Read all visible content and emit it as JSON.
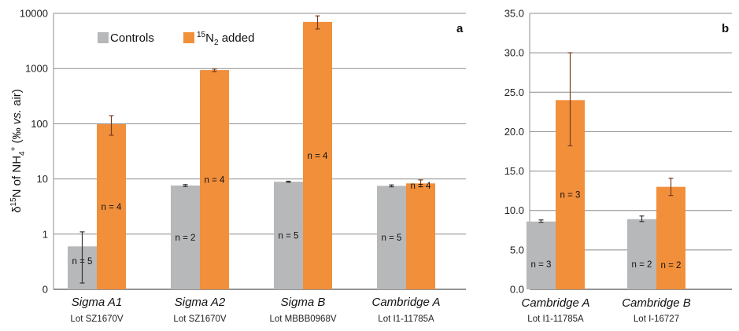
{
  "y_axis_label": {
    "delta": "δ",
    "sup15": "15",
    "n_of": "N of NH",
    "sub4": "4",
    "plus": "+",
    "open": " (‰ ",
    "vs": "vs.",
    "air": " air)"
  },
  "legend": {
    "controls": "Controls",
    "added_sup": "15",
    "added_n": "N",
    "added_sub": "2",
    "added_rest": " added"
  },
  "colors": {
    "controls": "#b7b8b9",
    "added": "#f28f3b",
    "error": "#7a3b1c",
    "grid": "#8c8c8c"
  },
  "chart_data": [
    {
      "panel": "a",
      "type": "bar",
      "scale": "log",
      "ylim": [
        0.1,
        10000
      ],
      "yticks": [
        0.1,
        1,
        10,
        100,
        1000,
        10000
      ],
      "ytick_labels": [
        "0",
        "1",
        "10",
        "100",
        "1000",
        "10000"
      ],
      "grid": true,
      "legend_position": "top-left",
      "categories": [
        {
          "name": "Sigma A1",
          "lot": "Lot SZ1670V"
        },
        {
          "name": "Sigma A2",
          "lot": "Lot SZ1670V"
        },
        {
          "name": "Sigma B",
          "lot": "Lot MBBB0968V"
        },
        {
          "name": "Cambridge A",
          "lot": "Lot I1-11785A"
        }
      ],
      "series": [
        {
          "name": "Controls",
          "key": "controls",
          "values": [
            0.6,
            7.6,
            8.9,
            7.5
          ],
          "err_low": [
            0.13,
            7.3,
            8.7,
            7.2
          ],
          "err_high": [
            1.1,
            7.9,
            9.1,
            7.8
          ],
          "n_labels": [
            "n = 5",
            "n = 2",
            "n = 5",
            "n = 5"
          ]
        },
        {
          "name": "15N2 added",
          "key": "added",
          "values": [
            98,
            940,
            7000,
            8.3
          ],
          "err_low": [
            62,
            880,
            5200,
            7.2
          ],
          "err_high": [
            140,
            980,
            9000,
            9.6
          ],
          "n_labels": [
            "n = 4",
            "n = 4",
            "n = 4",
            "n = 4"
          ]
        }
      ]
    },
    {
      "panel": "b",
      "type": "bar",
      "scale": "linear",
      "ylim": [
        0,
        35
      ],
      "yticks": [
        0,
        5,
        10,
        15,
        20,
        25,
        30,
        35
      ],
      "ytick_labels": [
        "0.0",
        "5.0",
        "10.0",
        "15.0",
        "20.0",
        "25.0",
        "30.0",
        "35.0"
      ],
      "grid": true,
      "categories": [
        {
          "name": "Cambridge A",
          "lot": "Lot I1-11785A"
        },
        {
          "name": "Cambridge B",
          "lot": "Lot I-16727"
        }
      ],
      "series": [
        {
          "name": "Controls",
          "key": "controls",
          "values": [
            8.6,
            8.9
          ],
          "err_low": [
            8.5,
            8.6
          ],
          "err_high": [
            8.8,
            9.3
          ],
          "n_labels": [
            "n = 3",
            "n = 2"
          ]
        },
        {
          "name": "15N2 added",
          "key": "added",
          "values": [
            24.0,
            13.0
          ],
          "err_low": [
            18.2,
            11.9
          ],
          "err_high": [
            30.0,
            14.1
          ],
          "n_labels": [
            "n = 3",
            "n = 2"
          ]
        }
      ]
    }
  ]
}
